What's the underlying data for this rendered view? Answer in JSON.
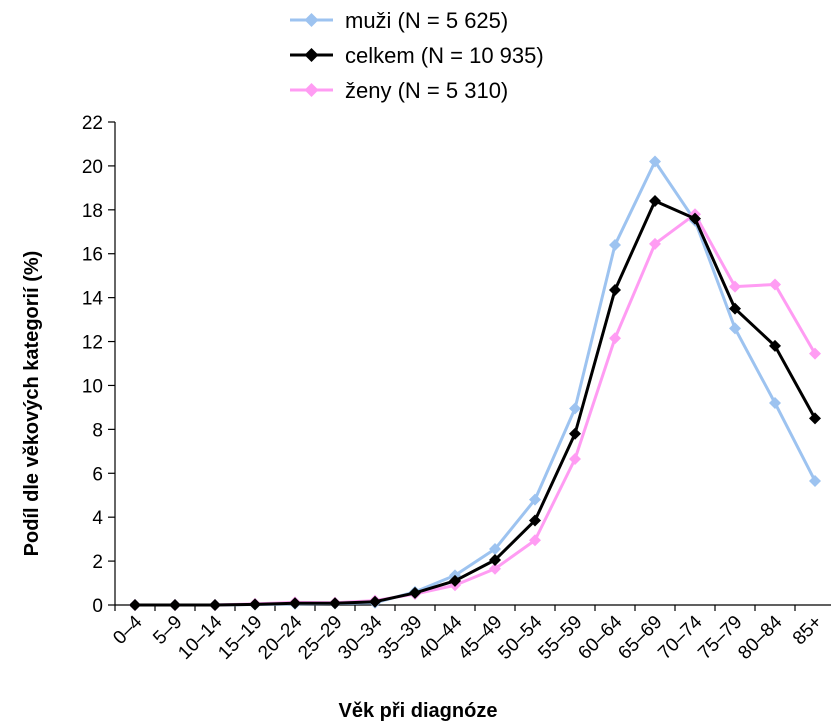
{
  "chart_data": {
    "type": "line",
    "title": "",
    "xlabel": "Věk při diagnóze",
    "ylabel": "Podíl dle věkových kategorií (%)",
    "ylim": [
      0,
      22
    ],
    "yticks": [
      0,
      2,
      4,
      6,
      8,
      10,
      12,
      14,
      16,
      18,
      20,
      22
    ],
    "grid": false,
    "legend_position": "top-center",
    "categories": [
      "0–4",
      "5–9",
      "10–14",
      "15–19",
      "20–24",
      "25–29",
      "30–34",
      "35–39",
      "40–44",
      "45–49",
      "50–54",
      "55–59",
      "60–64",
      "65–69",
      "70–74",
      "75–79",
      "80–84",
      "85+"
    ],
    "series": [
      {
        "name": "muži (N = 5 625)",
        "color": "#9dc3f0",
        "marker": "diamond",
        "values": [
          0.0,
          0.0,
          0.0,
          0.02,
          0.05,
          0.07,
          0.1,
          0.6,
          1.35,
          2.55,
          4.8,
          8.95,
          16.4,
          20.2,
          17.5,
          12.6,
          9.2,
          5.65
        ]
      },
      {
        "name": "celkem (N = 10 935)",
        "color": "#000000",
        "marker": "diamond",
        "values": [
          0.0,
          0.0,
          0.0,
          0.03,
          0.08,
          0.08,
          0.15,
          0.55,
          1.1,
          2.05,
          3.85,
          7.8,
          14.35,
          18.4,
          17.6,
          13.5,
          11.8,
          8.5
        ]
      },
      {
        "name": "ženy (N = 5 310)",
        "color": "#ff9cf3",
        "marker": "diamond",
        "values": [
          0.0,
          0.0,
          0.0,
          0.05,
          0.12,
          0.1,
          0.2,
          0.5,
          0.9,
          1.65,
          2.95,
          6.65,
          12.15,
          16.45,
          17.8,
          14.5,
          14.6,
          11.45
        ]
      }
    ]
  }
}
